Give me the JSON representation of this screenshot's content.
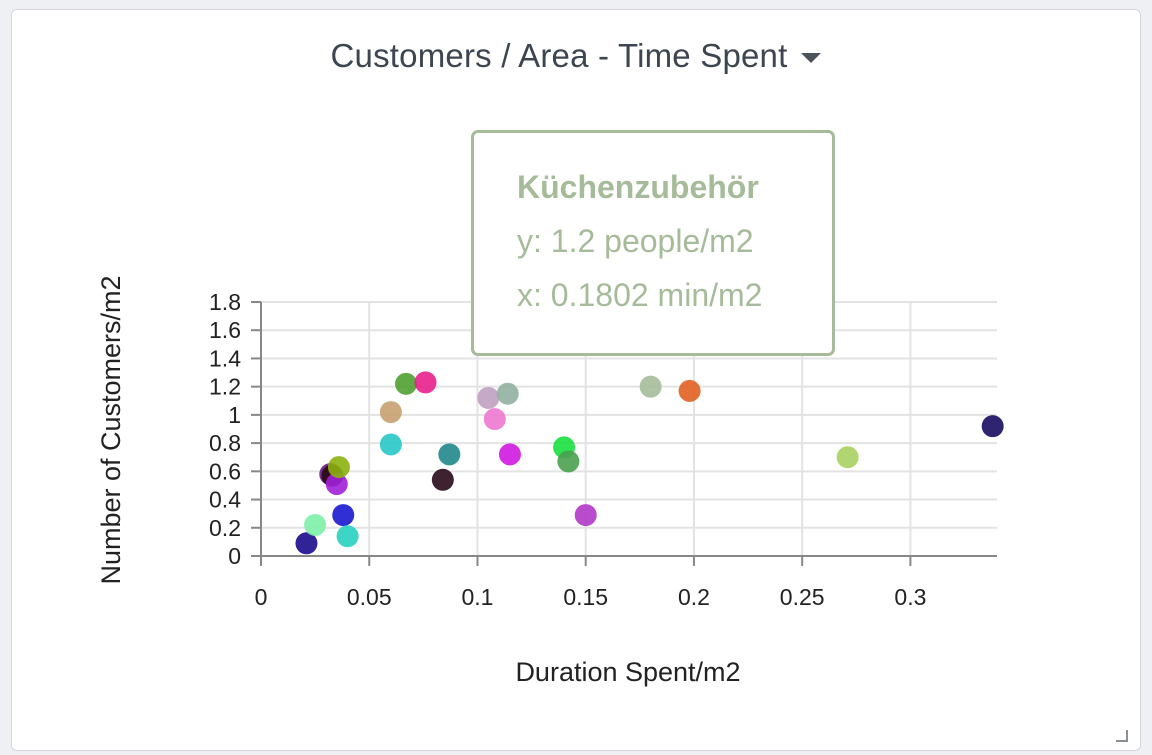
{
  "header": {
    "title": "Customers / Area - Time Spent",
    "dropdown_icon": "caret-down-icon"
  },
  "tooltip": {
    "name": "Küchenzubehör",
    "y_text": "y: 1.2 people/m2",
    "x_text": "x: 0.1802 min/m2",
    "color": "#a5bb9a"
  },
  "chart_data": {
    "type": "scatter",
    "title": "Customers / Area - Time Spent",
    "xlabel": "Duration Spent/m2",
    "ylabel": "Number of Customers/m2",
    "xlim": [
      0,
      0.34
    ],
    "ylim": [
      0,
      1.8
    ],
    "xticks": [
      0,
      0.05,
      0.1,
      0.15,
      0.2,
      0.25,
      0.3
    ],
    "xtick_labels": [
      "0",
      "0.05",
      "0.1",
      "0.15",
      "0.2",
      "0.25",
      "0.3"
    ],
    "yticks": [
      0,
      0.2,
      0.4,
      0.6,
      0.8,
      1,
      1.2,
      1.4,
      1.6,
      1.8
    ],
    "ytick_labels": [
      "0",
      "0.2",
      "0.4",
      "0.6",
      "0.8",
      "1",
      "1.2",
      "1.4",
      "1.6",
      "1.8"
    ],
    "grid": true,
    "points": [
      {
        "x": 0.021,
        "y": 0.09,
        "color": "#1a0a8c"
      },
      {
        "x": 0.025,
        "y": 0.22,
        "color": "#7ef0a8"
      },
      {
        "x": 0.032,
        "y": 0.58,
        "color": "#6a1a8c"
      },
      {
        "x": 0.033,
        "y": 0.57,
        "color": "#2a0a12"
      },
      {
        "x": 0.035,
        "y": 0.51,
        "color": "#a020d8"
      },
      {
        "x": 0.036,
        "y": 0.63,
        "color": "#8cb010"
      },
      {
        "x": 0.038,
        "y": 0.29,
        "color": "#1a18d0"
      },
      {
        "x": 0.04,
        "y": 0.14,
        "color": "#28d0c0"
      },
      {
        "x": 0.06,
        "y": 1.02,
        "color": "#c8a070"
      },
      {
        "x": 0.06,
        "y": 0.79,
        "color": "#28c8c8"
      },
      {
        "x": 0.067,
        "y": 1.22,
        "color": "#50a030"
      },
      {
        "x": 0.076,
        "y": 1.23,
        "color": "#e8208c"
      },
      {
        "x": 0.084,
        "y": 0.54,
        "color": "#2a0a1a"
      },
      {
        "x": 0.087,
        "y": 0.72,
        "color": "#20888c"
      },
      {
        "x": 0.105,
        "y": 1.12,
        "color": "#c0a0c0"
      },
      {
        "x": 0.108,
        "y": 0.97,
        "color": "#f078d0"
      },
      {
        "x": 0.114,
        "y": 1.15,
        "color": "#90b0a0"
      },
      {
        "x": 0.115,
        "y": 0.72,
        "color": "#d018e0"
      },
      {
        "x": 0.14,
        "y": 0.77,
        "color": "#18e040"
      },
      {
        "x": 0.142,
        "y": 0.67,
        "color": "#4aa050"
      },
      {
        "x": 0.15,
        "y": 0.29,
        "color": "#b038c8"
      },
      {
        "x": 0.18,
        "y": 1.2,
        "color": "#a5bb9a"
      },
      {
        "x": 0.198,
        "y": 1.17,
        "color": "#e06020"
      },
      {
        "x": 0.271,
        "y": 0.7,
        "color": "#a8d060"
      },
      {
        "x": 0.338,
        "y": 0.92,
        "color": "#180c60"
      }
    ]
  }
}
